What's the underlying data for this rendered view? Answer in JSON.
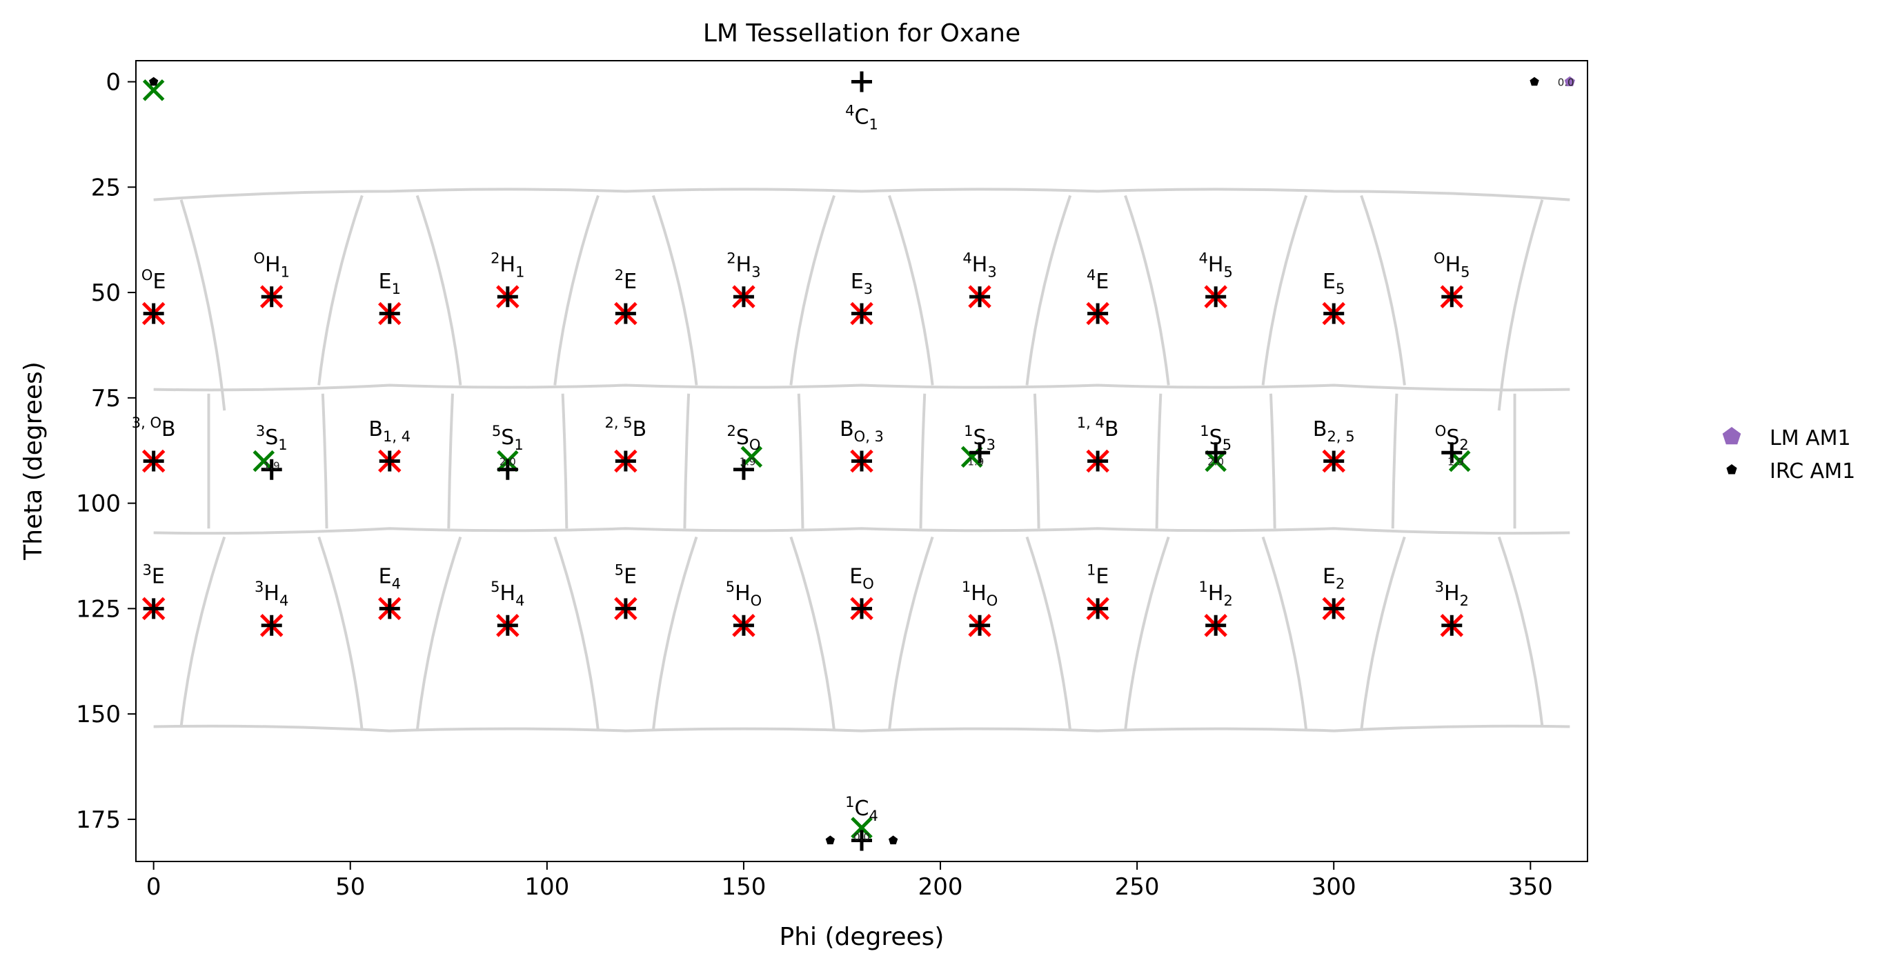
{
  "chart_data": {
    "type": "scatter",
    "title": "LM Tessellation for Oxane",
    "xlabel": "Phi (degrees)",
    "ylabel": "Theta (degrees)",
    "xlim": [
      -4.5,
      364.5
    ],
    "ylim": [
      185,
      -5
    ],
    "y_inverted": true,
    "grid": false,
    "x_ticks": [
      0,
      50,
      100,
      150,
      200,
      250,
      300,
      350
    ],
    "y_ticks": [
      0,
      25,
      50,
      75,
      100,
      125,
      150,
      175
    ],
    "legend": {
      "placement": "right",
      "entries": [
        {
          "name": "LM AM1",
          "marker": "pentagon",
          "color": "#9467bd"
        },
        {
          "name": "IRC AM1",
          "marker": "pentagon",
          "color": "#000000"
        }
      ]
    },
    "colors": {
      "cell_border": "#d3d3d3",
      "red_marker": "#ff0000",
      "green_marker": "#008000",
      "black_marker": "#000000"
    },
    "cell_edges": [
      [
        [
          0,
          28
        ],
        [
          60,
          26
        ],
        [
          120,
          26
        ],
        [
          180,
          26
        ],
        [
          240,
          26
        ],
        [
          300,
          26
        ],
        [
          360,
          28
        ]
      ],
      [
        [
          0,
          73
        ],
        [
          60,
          72
        ],
        [
          120,
          72
        ],
        [
          180,
          72
        ],
        [
          240,
          72
        ],
        [
          300,
          72
        ],
        [
          360,
          73
        ]
      ],
      [
        [
          0,
          107
        ],
        [
          60,
          106
        ],
        [
          120,
          106
        ],
        [
          180,
          106
        ],
        [
          240,
          106
        ],
        [
          300,
          106
        ],
        [
          360,
          107
        ]
      ],
      [
        [
          0,
          153
        ],
        [
          60,
          154
        ],
        [
          120,
          154
        ],
        [
          180,
          154
        ],
        [
          240,
          154
        ],
        [
          300,
          154
        ],
        [
          360,
          153
        ]
      ]
    ],
    "cell_dividers": [
      {
        "phi_top": 7,
        "phi_bottom": 18,
        "theta_top": 28,
        "theta_bottom": 78
      },
      {
        "phi_top": 53,
        "phi_bottom": 42,
        "theta_top": 27,
        "theta_bottom": 72
      },
      {
        "phi_top": 67,
        "phi_bottom": 78,
        "theta_top": 27,
        "theta_bottom": 72
      },
      {
        "phi_top": 113,
        "phi_bottom": 102,
        "theta_top": 27,
        "theta_bottom": 72
      },
      {
        "phi_top": 127,
        "phi_bottom": 138,
        "theta_top": 27,
        "theta_bottom": 72
      },
      {
        "phi_top": 173,
        "phi_bottom": 162,
        "theta_top": 27,
        "theta_bottom": 72
      },
      {
        "phi_top": 187,
        "phi_bottom": 198,
        "theta_top": 27,
        "theta_bottom": 72
      },
      {
        "phi_top": 233,
        "phi_bottom": 222,
        "theta_top": 27,
        "theta_bottom": 72
      },
      {
        "phi_top": 247,
        "phi_bottom": 258,
        "theta_top": 27,
        "theta_bottom": 72
      },
      {
        "phi_top": 293,
        "phi_bottom": 282,
        "theta_top": 27,
        "theta_bottom": 72
      },
      {
        "phi_top": 307,
        "phi_bottom": 318,
        "theta_top": 27,
        "theta_bottom": 72
      },
      {
        "phi_top": 353,
        "phi_bottom": 342,
        "theta_top": 28,
        "theta_bottom": 78
      },
      {
        "phi_top": 14,
        "phi_bottom": 14,
        "theta_top": 74,
        "theta_bottom": 106
      },
      {
        "phi_top": 43,
        "phi_bottom": 44,
        "theta_top": 74,
        "theta_bottom": 106
      },
      {
        "phi_top": 76,
        "phi_bottom": 75,
        "theta_top": 74,
        "theta_bottom": 106
      },
      {
        "phi_top": 104,
        "phi_bottom": 105,
        "theta_top": 74,
        "theta_bottom": 106
      },
      {
        "phi_top": 136,
        "phi_bottom": 135,
        "theta_top": 74,
        "theta_bottom": 106
      },
      {
        "phi_top": 164,
        "phi_bottom": 165,
        "theta_top": 74,
        "theta_bottom": 106
      },
      {
        "phi_top": 196,
        "phi_bottom": 195,
        "theta_top": 74,
        "theta_bottom": 106
      },
      {
        "phi_top": 224,
        "phi_bottom": 225,
        "theta_top": 74,
        "theta_bottom": 106
      },
      {
        "phi_top": 256,
        "phi_bottom": 255,
        "theta_top": 74,
        "theta_bottom": 106
      },
      {
        "phi_top": 284,
        "phi_bottom": 285,
        "theta_top": 74,
        "theta_bottom": 106
      },
      {
        "phi_top": 316,
        "phi_bottom": 315,
        "theta_top": 74,
        "theta_bottom": 106
      },
      {
        "phi_top": 346,
        "phi_bottom": 346,
        "theta_top": 74,
        "theta_bottom": 106
      },
      {
        "phi_top": 18,
        "phi_bottom": 7,
        "theta_top": 108,
        "theta_bottom": 153
      },
      {
        "phi_top": 42,
        "phi_bottom": 53,
        "theta_top": 108,
        "theta_bottom": 154
      },
      {
        "phi_top": 78,
        "phi_bottom": 67,
        "theta_top": 108,
        "theta_bottom": 154
      },
      {
        "phi_top": 102,
        "phi_bottom": 113,
        "theta_top": 108,
        "theta_bottom": 154
      },
      {
        "phi_top": 138,
        "phi_bottom": 127,
        "theta_top": 108,
        "theta_bottom": 154
      },
      {
        "phi_top": 162,
        "phi_bottom": 173,
        "theta_top": 108,
        "theta_bottom": 154
      },
      {
        "phi_top": 198,
        "phi_bottom": 187,
        "theta_top": 108,
        "theta_bottom": 154
      },
      {
        "phi_top": 222,
        "phi_bottom": 233,
        "theta_top": 108,
        "theta_bottom": 154
      },
      {
        "phi_top": 258,
        "phi_bottom": 247,
        "theta_top": 108,
        "theta_bottom": 154
      },
      {
        "phi_top": 282,
        "phi_bottom": 293,
        "theta_top": 108,
        "theta_bottom": 154
      },
      {
        "phi_top": 318,
        "phi_bottom": 307,
        "theta_top": 108,
        "theta_bottom": 154
      },
      {
        "phi_top": 342,
        "phi_bottom": 353,
        "theta_top": 108,
        "theta_bottom": 153
      }
    ],
    "red_x_points": [
      {
        "phi": 0,
        "theta": 55
      },
      {
        "phi": 30,
        "theta": 51
      },
      {
        "phi": 60,
        "theta": 55
      },
      {
        "phi": 90,
        "theta": 51
      },
      {
        "phi": 120,
        "theta": 55
      },
      {
        "phi": 150,
        "theta": 51
      },
      {
        "phi": 180,
        "theta": 55
      },
      {
        "phi": 210,
        "theta": 51
      },
      {
        "phi": 240,
        "theta": 55
      },
      {
        "phi": 270,
        "theta": 51
      },
      {
        "phi": 300,
        "theta": 55
      },
      {
        "phi": 330,
        "theta": 51
      },
      {
        "phi": 0,
        "theta": 90
      },
      {
        "phi": 60,
        "theta": 90
      },
      {
        "phi": 120,
        "theta": 90
      },
      {
        "phi": 180,
        "theta": 90
      },
      {
        "phi": 240,
        "theta": 90
      },
      {
        "phi": 300,
        "theta": 90
      },
      {
        "phi": 0,
        "theta": 125
      },
      {
        "phi": 30,
        "theta": 129
      },
      {
        "phi": 60,
        "theta": 125
      },
      {
        "phi": 90,
        "theta": 129
      },
      {
        "phi": 120,
        "theta": 125
      },
      {
        "phi": 150,
        "theta": 129
      },
      {
        "phi": 180,
        "theta": 125
      },
      {
        "phi": 210,
        "theta": 129
      },
      {
        "phi": 240,
        "theta": 125
      },
      {
        "phi": 270,
        "theta": 129
      },
      {
        "phi": 300,
        "theta": 125
      },
      {
        "phi": 330,
        "theta": 129
      }
    ],
    "green_x_points": [
      {
        "phi": 0,
        "theta": 2
      },
      {
        "phi": 28,
        "theta": 90
      },
      {
        "phi": 90,
        "theta": 90
      },
      {
        "phi": 152,
        "theta": 89
      },
      {
        "phi": 208,
        "theta": 89
      },
      {
        "phi": 270,
        "theta": 90
      },
      {
        "phi": 332,
        "theta": 90
      },
      {
        "phi": 180,
        "theta": 177
      }
    ],
    "plus_points": [
      {
        "phi": 180,
        "theta": 0
      },
      {
        "phi": 0,
        "theta": 55
      },
      {
        "phi": 30,
        "theta": 51
      },
      {
        "phi": 60,
        "theta": 55
      },
      {
        "phi": 90,
        "theta": 51
      },
      {
        "phi": 120,
        "theta": 55
      },
      {
        "phi": 150,
        "theta": 51
      },
      {
        "phi": 180,
        "theta": 55
      },
      {
        "phi": 210,
        "theta": 51
      },
      {
        "phi": 240,
        "theta": 55
      },
      {
        "phi": 270,
        "theta": 51
      },
      {
        "phi": 300,
        "theta": 55
      },
      {
        "phi": 330,
        "theta": 51
      },
      {
        "phi": 0,
        "theta": 90
      },
      {
        "phi": 30,
        "theta": 92
      },
      {
        "phi": 60,
        "theta": 90
      },
      {
        "phi": 90,
        "theta": 92
      },
      {
        "phi": 120,
        "theta": 90
      },
      {
        "phi": 150,
        "theta": 92
      },
      {
        "phi": 180,
        "theta": 90
      },
      {
        "phi": 210,
        "theta": 88
      },
      {
        "phi": 240,
        "theta": 90
      },
      {
        "phi": 270,
        "theta": 88
      },
      {
        "phi": 300,
        "theta": 90
      },
      {
        "phi": 330,
        "theta": 88
      },
      {
        "phi": 0,
        "theta": 125
      },
      {
        "phi": 30,
        "theta": 129
      },
      {
        "phi": 60,
        "theta": 125
      },
      {
        "phi": 90,
        "theta": 129
      },
      {
        "phi": 120,
        "theta": 125
      },
      {
        "phi": 150,
        "theta": 129
      },
      {
        "phi": 180,
        "theta": 125
      },
      {
        "phi": 210,
        "theta": 129
      },
      {
        "phi": 240,
        "theta": 125
      },
      {
        "phi": 270,
        "theta": 129
      },
      {
        "phi": 300,
        "theta": 125
      },
      {
        "phi": 330,
        "theta": 129
      },
      {
        "phi": 180,
        "theta": 180
      }
    ],
    "irc_am1_points": [
      {
        "phi": 0,
        "theta": 0
      },
      {
        "phi": 351,
        "theta": 0
      },
      {
        "phi": 172,
        "theta": 180
      },
      {
        "phi": 188,
        "theta": 180
      }
    ],
    "lm_am1_points": [
      {
        "phi": 360,
        "theta": 0
      }
    ],
    "puckering_labels": [
      {
        "phi": 180,
        "theta": 10,
        "sup": "4",
        "base": "C",
        "sub": "1"
      },
      {
        "phi": 0,
        "theta": 49,
        "sup": "O",
        "base": "E",
        "sub": ""
      },
      {
        "phi": 30,
        "theta": 45,
        "sup": "O",
        "base": "H",
        "sub": "1"
      },
      {
        "phi": 60,
        "theta": 49,
        "sup": "",
        "base": "E",
        "sub": "1"
      },
      {
        "phi": 90,
        "theta": 45,
        "sup": "2",
        "base": "H",
        "sub": "1"
      },
      {
        "phi": 120,
        "theta": 49,
        "sup": "2",
        "base": "E",
        "sub": ""
      },
      {
        "phi": 150,
        "theta": 45,
        "sup": "2",
        "base": "H",
        "sub": "3"
      },
      {
        "phi": 180,
        "theta": 49,
        "sup": "",
        "base": "E",
        "sub": "3"
      },
      {
        "phi": 210,
        "theta": 45,
        "sup": "4",
        "base": "H",
        "sub": "3"
      },
      {
        "phi": 240,
        "theta": 49,
        "sup": "4",
        "base": "E",
        "sub": ""
      },
      {
        "phi": 270,
        "theta": 45,
        "sup": "4",
        "base": "H",
        "sub": "5"
      },
      {
        "phi": 300,
        "theta": 49,
        "sup": "",
        "base": "E",
        "sub": "5"
      },
      {
        "phi": 330,
        "theta": 45,
        "sup": "O",
        "base": "H",
        "sub": "5"
      },
      {
        "phi": 0,
        "theta": 84,
        "sup": "3, O",
        "base": "B",
        "sub": ""
      },
      {
        "phi": 30,
        "theta": 86,
        "sup": "3",
        "base": "S",
        "sub": "1"
      },
      {
        "phi": 60,
        "theta": 84,
        "sup": "",
        "base": "B",
        "sub": "1, 4"
      },
      {
        "phi": 90,
        "theta": 86,
        "sup": "5",
        "base": "S",
        "sub": "1"
      },
      {
        "phi": 120,
        "theta": 84,
        "sup": "2, 5",
        "base": "B",
        "sub": ""
      },
      {
        "phi": 150,
        "theta": 86,
        "sup": "2",
        "base": "S",
        "sub": "O"
      },
      {
        "phi": 180,
        "theta": 84,
        "sup": "",
        "base": "B",
        "sub": "O, 3"
      },
      {
        "phi": 210,
        "theta": 86,
        "sup": "1",
        "base": "S",
        "sub": "3"
      },
      {
        "phi": 240,
        "theta": 84,
        "sup": "1, 4",
        "base": "B",
        "sub": ""
      },
      {
        "phi": 270,
        "theta": 86,
        "sup": "1",
        "base": "S",
        "sub": "5"
      },
      {
        "phi": 300,
        "theta": 84,
        "sup": "",
        "base": "B",
        "sub": "2, 5"
      },
      {
        "phi": 330,
        "theta": 86,
        "sup": "O",
        "base": "S",
        "sub": "2"
      },
      {
        "phi": 0,
        "theta": 119,
        "sup": "3",
        "base": "E",
        "sub": ""
      },
      {
        "phi": 30,
        "theta": 123,
        "sup": "3",
        "base": "H",
        "sub": "4"
      },
      {
        "phi": 60,
        "theta": 119,
        "sup": "",
        "base": "E",
        "sub": "4"
      },
      {
        "phi": 90,
        "theta": 123,
        "sup": "5",
        "base": "H",
        "sub": "4"
      },
      {
        "phi": 120,
        "theta": 119,
        "sup": "5",
        "base": "E",
        "sub": ""
      },
      {
        "phi": 150,
        "theta": 123,
        "sup": "5",
        "base": "H",
        "sub": "O"
      },
      {
        "phi": 180,
        "theta": 119,
        "sup": "",
        "base": "E",
        "sub": "O"
      },
      {
        "phi": 210,
        "theta": 123,
        "sup": "1",
        "base": "H",
        "sub": "O"
      },
      {
        "phi": 240,
        "theta": 119,
        "sup": "1",
        "base": "E",
        "sub": ""
      },
      {
        "phi": 270,
        "theta": 123,
        "sup": "1",
        "base": "H",
        "sub": "2"
      },
      {
        "phi": 300,
        "theta": 119,
        "sup": "",
        "base": "E",
        "sub": "2"
      },
      {
        "phi": 330,
        "theta": 123,
        "sup": "3",
        "base": "H",
        "sub": "2"
      },
      {
        "phi": 180,
        "theta": 174,
        "sup": "1",
        "base": "C",
        "sub": "4"
      }
    ],
    "value_labels": [
      {
        "phi": 30,
        "theta": 91,
        "text": "1.9"
      },
      {
        "phi": 90,
        "theta": 90,
        "text": "2.0"
      },
      {
        "phi": 151,
        "theta": 90,
        "text": "1.9"
      },
      {
        "phi": 209,
        "theta": 90,
        "text": "1.9"
      },
      {
        "phi": 270,
        "theta": 90,
        "text": "2.0"
      },
      {
        "phi": 331,
        "theta": 90,
        "text": "1.9"
      },
      {
        "phi": 359,
        "theta": 0,
        "text": "0.0"
      },
      {
        "phi": 180,
        "theta": 179,
        "text": "0.0"
      }
    ]
  }
}
